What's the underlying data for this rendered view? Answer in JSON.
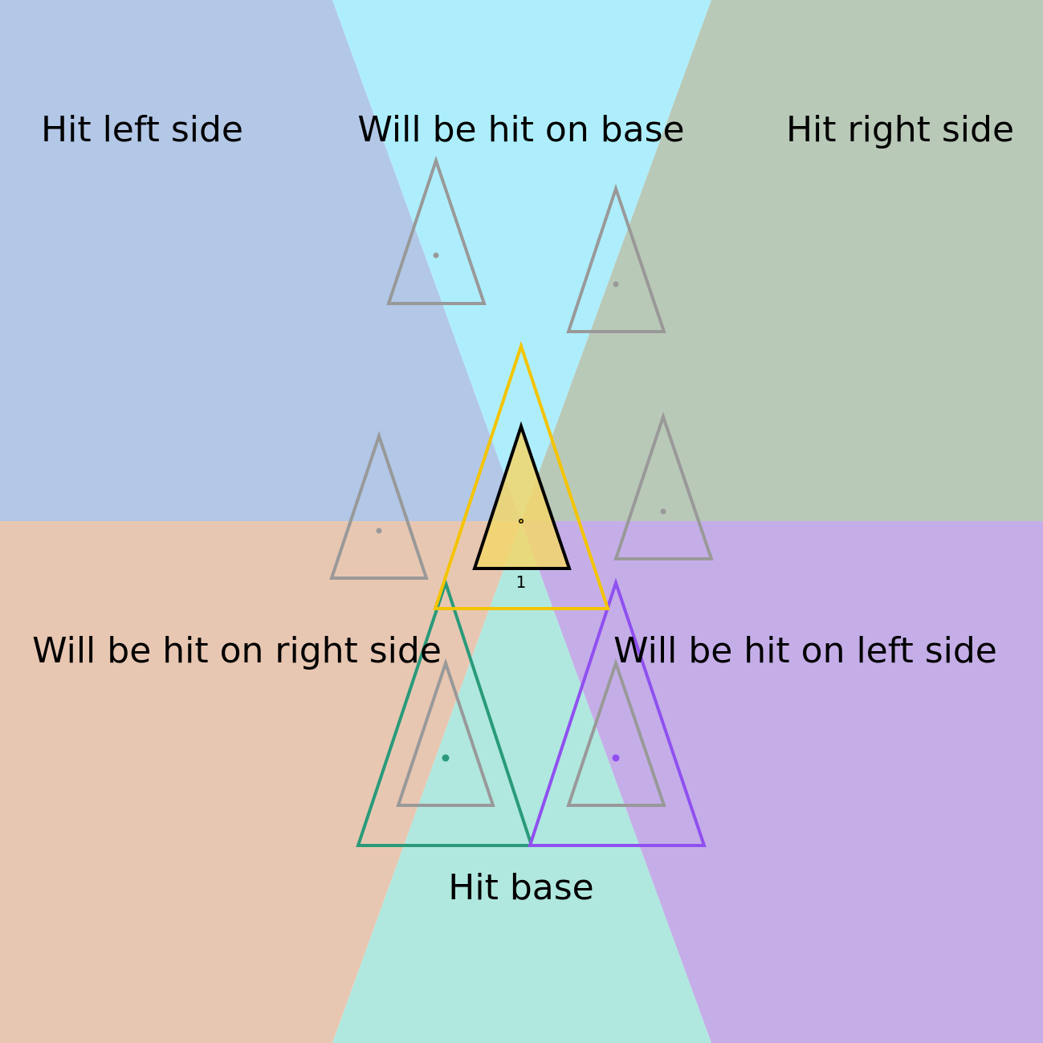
{
  "labels": {
    "hit_left_side": "Hit left side",
    "will_be_hit_on_base": "Will be hit on base",
    "hit_right_side": "Hit right side",
    "will_be_hit_on_right_side": "Will be hit on right side",
    "will_be_hit_on_left_side": "Will be hit on left side",
    "hit_base": "Hit base",
    "center_id": "1"
  },
  "colors": {
    "hit_left_side_region": "#b3c7e7",
    "will_be_hit_on_base_region": "#aeeefc",
    "hit_right_side_region": "#b9c9b8",
    "will_be_hit_on_right_side_region": "#e8c7b2",
    "will_be_hit_on_left_side_region": "#c5aee8",
    "hit_base_region": "#b0e8df",
    "center_fill": "#f2d66b",
    "center_stroke": "#000000",
    "outer_stroke": "#f4c400",
    "ghost_stroke": "#999999",
    "green_stroke": "#2a9a7a",
    "purple_stroke": "#9050f0"
  }
}
